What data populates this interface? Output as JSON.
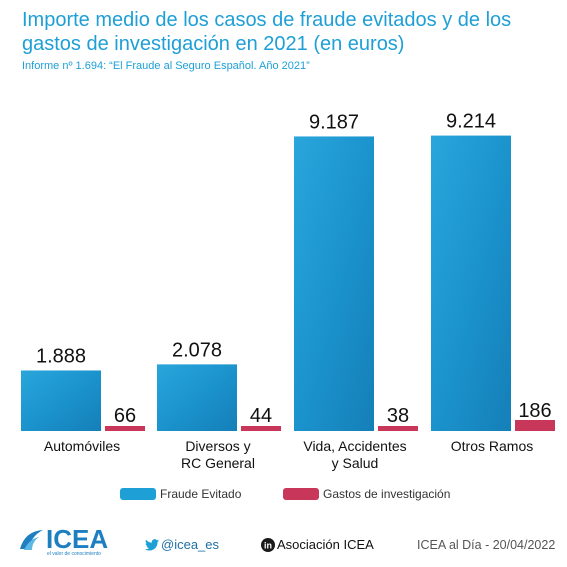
{
  "header": {
    "title": "Importe medio de los casos de fraude evitados y de los gastos de investigación en 2021 (en euros)",
    "subtitle": "Informe nº 1.694: “El Fraude al Seguro Español. Año 2021”"
  },
  "chart_data": {
    "type": "bar",
    "categories": [
      [
        "Automóviles"
      ],
      [
        "Diversos y",
        "RC General"
      ],
      [
        "Vida, Accidentes",
        "y Salud"
      ],
      [
        "Otros Ramos"
      ]
    ],
    "series": [
      {
        "name": "Fraude Evitado",
        "values": [
          1888,
          2078,
          9187,
          9214
        ],
        "labels": [
          "1.888",
          "2.078",
          "9.187",
          "9.214"
        ],
        "color": "#1e9fd6"
      },
      {
        "name": "Gastos de investigación",
        "values": [
          66,
          44,
          38,
          186
        ],
        "labels": [
          "66",
          "44",
          "38",
          "186"
        ],
        "color": "#c8365a"
      }
    ],
    "ylim": [
      0,
      9700
    ],
    "legend": "bottom"
  },
  "footer": {
    "logo_text": "ICEA",
    "logo_tagline": "el valor de conocimiento",
    "twitter": "@icea_es",
    "linkedin": "Asociación ICEA",
    "date": "ICEA al Día - 20/04/2022"
  }
}
